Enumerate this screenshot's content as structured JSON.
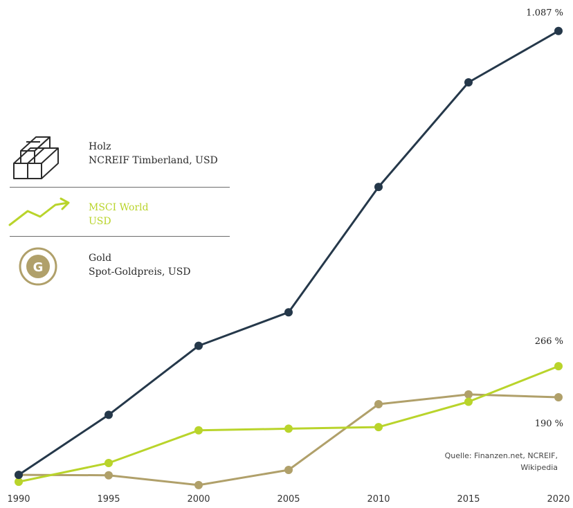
{
  "legend": {
    "holz": {
      "title": "Holz",
      "subtitle": "NCREIF Timberland, USD",
      "icon": "wood-stack-icon"
    },
    "msci": {
      "title": "MSCI World",
      "subtitle": "USD",
      "icon": "trend-arrow-icon"
    },
    "gold": {
      "title": "Gold",
      "subtitle": "Spot-Goldpreis, USD",
      "icon": "gold-coin-icon",
      "icon_letter": "G"
    }
  },
  "source": {
    "line1": "Quelle: Finanzen.net, NCREIF,",
    "line2": "Wikipedia"
  },
  "colors": {
    "holz": "#25384a",
    "msci": "#b9d42b",
    "gold": "#b0a06a"
  },
  "chart_data": {
    "type": "line",
    "x": [
      1990,
      1995,
      2000,
      2005,
      2010,
      2015,
      2020
    ],
    "xtick_labels": [
      "1990",
      "1995",
      "2000",
      "2005",
      "2010",
      "2015",
      "2020"
    ],
    "ylim": [
      -10,
      1100
    ],
    "series": [
      {
        "key": "holz",
        "name": "Holz",
        "color": "#25384a",
        "values": [
          0,
          147,
          316,
          398,
          705,
          961,
          1087
        ],
        "end_label": "1.087 %"
      },
      {
        "key": "msci",
        "name": "MSCI World",
        "color": "#b9d42b",
        "values": [
          -17,
          29,
          109,
          113,
          117,
          179,
          266
        ],
        "end_label": "266 %"
      },
      {
        "key": "gold",
        "name": "Gold",
        "color": "#b0a06a",
        "values": [
          0,
          -1,
          -25,
          12,
          173,
          197,
          190
        ],
        "end_label": "190 %"
      }
    ]
  }
}
